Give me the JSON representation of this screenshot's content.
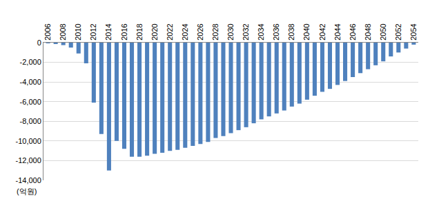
{
  "chart_data": {
    "type": "bar",
    "y_label": "(억원)",
    "categories": [
      "2006",
      null,
      "2008",
      null,
      "2010",
      null,
      "2012",
      null,
      "2014",
      null,
      "2016",
      null,
      "2018",
      null,
      "2020",
      null,
      "2022",
      null,
      "2024",
      null,
      "2026",
      null,
      "2028",
      null,
      "2030",
      null,
      "2032",
      null,
      "2034",
      null,
      "2036",
      null,
      "2038",
      null,
      "2040",
      null,
      "2042",
      null,
      "2044",
      null,
      "2046",
      null,
      "2048",
      null,
      "2050",
      null,
      "2052",
      null,
      "2054"
    ],
    "values": [
      -30,
      -100,
      -250,
      -500,
      -1100,
      -2100,
      -6100,
      -9300,
      -13000,
      -10000,
      -10800,
      -11600,
      -11600,
      -11500,
      -11300,
      -11200,
      -11000,
      -10900,
      -10700,
      -10500,
      -10300,
      -10100,
      -9700,
      -9500,
      -9200,
      -8900,
      -8600,
      -8200,
      -7800,
      -7500,
      -7200,
      -6900,
      -6500,
      -6200,
      -5800,
      -5400,
      -5000,
      -4700,
      -4300,
      -3900,
      -3500,
      -3100,
      -2700,
      -2300,
      -1900,
      -1400,
      -1000,
      -600,
      -200
    ],
    "color": "#4f81bd",
    "ylim": [
      -14000,
      0
    ],
    "yticks": [
      0,
      {
        "value": -2000,
        "label": "-2,000"
      },
      {
        "value": -4000,
        "label": "-4,000"
      },
      {
        "value": -6000,
        "label": "-6,000"
      },
      {
        "value": -8000,
        "label": "-8,000"
      },
      {
        "value": -10000,
        "label": "-10,000"
      },
      {
        "value": -12000,
        "label": "-12,000"
      },
      {
        "value": -14000,
        "label": "-14,000"
      }
    ],
    "grid": true
  }
}
